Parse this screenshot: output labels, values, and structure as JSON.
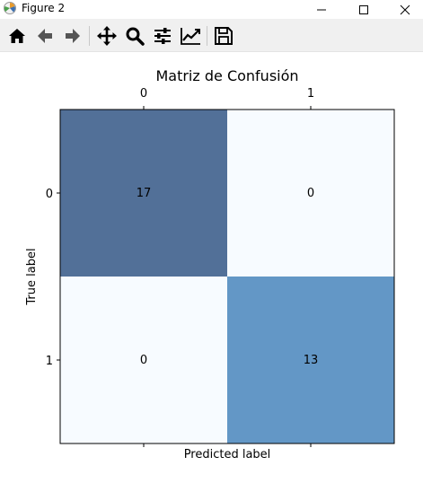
{
  "window": {
    "title": "Figure 2",
    "icon": "matplotlib-icon",
    "controls": [
      "minimize-icon",
      "maximize-icon",
      "close-icon"
    ]
  },
  "toolbar": {
    "buttons": [
      {
        "name": "home",
        "icon": "home-icon"
      },
      {
        "name": "back",
        "icon": "arrow-left-icon"
      },
      {
        "name": "forward",
        "icon": "arrow-right-icon"
      },
      {
        "name": "pan",
        "icon": "move-icon"
      },
      {
        "name": "zoom",
        "icon": "magnifier-icon"
      },
      {
        "name": "configure-subplots",
        "icon": "sliders-icon"
      },
      {
        "name": "edit-axes",
        "icon": "chart-line-icon"
      },
      {
        "name": "save",
        "icon": "floppy-disk-icon"
      }
    ]
  },
  "chart_data": {
    "type": "heatmap",
    "title": "Matriz de Confusión",
    "xlabel": "Predicted label",
    "ylabel": "True label",
    "x_categories": [
      "0",
      "1"
    ],
    "y_categories": [
      "0",
      "1"
    ],
    "x_ticks_position": "top",
    "values": [
      [
        17,
        0
      ],
      [
        0,
        13
      ]
    ],
    "cell_labels": [
      "17",
      "0",
      "0",
      "13"
    ],
    "colormap": {
      "low": "#f7fbff",
      "mid": "#6499c9",
      "high": "#527098"
    },
    "grid": false
  }
}
